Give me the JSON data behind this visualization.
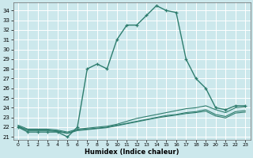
{
  "xlabel": "Humidex (Indice chaleur)",
  "background_color": "#cce8ec",
  "grid_color": "#ffffff",
  "line_color": "#2e7d6e",
  "xlim": [
    -0.5,
    23.5
  ],
  "ylim": [
    20.7,
    34.8
  ],
  "xticks": [
    0,
    1,
    2,
    3,
    4,
    5,
    6,
    7,
    8,
    9,
    10,
    11,
    12,
    13,
    14,
    15,
    16,
    17,
    18,
    19,
    20,
    21,
    22,
    23
  ],
  "yticks": [
    21,
    22,
    23,
    24,
    25,
    26,
    27,
    28,
    29,
    30,
    31,
    32,
    33,
    34
  ],
  "lines": [
    {
      "x": [
        0,
        1,
        2,
        3,
        4,
        5,
        6,
        7,
        8,
        9,
        10,
        11,
        12,
        13,
        14,
        15,
        16,
        17,
        18,
        19,
        20,
        21,
        22,
        23
      ],
      "y": [
        22.0,
        21.5,
        21.5,
        21.5,
        21.5,
        21.0,
        22.0,
        28.0,
        28.5,
        28.0,
        31.0,
        32.5,
        32.5,
        33.5,
        34.5,
        34.0,
        33.8,
        29.0,
        27.0,
        26.0,
        24.0,
        23.8,
        24.2,
        24.2
      ],
      "marker": "+",
      "lw": 1.0
    },
    {
      "x": [
        0,
        1,
        2,
        3,
        4,
        5,
        6,
        7,
        8,
        9,
        10,
        11,
        12,
        13,
        14,
        15,
        16,
        17,
        18,
        19,
        20,
        21,
        22,
        23
      ],
      "y": [
        22.2,
        21.8,
        21.8,
        21.8,
        21.7,
        21.5,
        21.8,
        21.9,
        22.0,
        22.1,
        22.3,
        22.6,
        22.9,
        23.1,
        23.3,
        23.5,
        23.7,
        23.9,
        24.0,
        24.2,
        23.8,
        23.5,
        24.0,
        24.1
      ],
      "marker": null,
      "lw": 0.8
    },
    {
      "x": [
        0,
        1,
        2,
        3,
        4,
        5,
        6,
        7,
        8,
        9,
        10,
        11,
        12,
        13,
        14,
        15,
        16,
        17,
        18,
        19,
        20,
        21,
        22,
        23
      ],
      "y": [
        22.1,
        21.7,
        21.7,
        21.7,
        21.6,
        21.4,
        21.7,
        21.8,
        21.9,
        22.0,
        22.2,
        22.4,
        22.6,
        22.8,
        23.0,
        23.2,
        23.3,
        23.5,
        23.6,
        23.8,
        23.3,
        23.1,
        23.6,
        23.7
      ],
      "marker": null,
      "lw": 0.8
    },
    {
      "x": [
        0,
        1,
        2,
        3,
        4,
        5,
        6,
        7,
        8,
        9,
        10,
        11,
        12,
        13,
        14,
        15,
        16,
        17,
        18,
        19,
        20,
        21,
        22,
        23
      ],
      "y": [
        22.05,
        21.65,
        21.65,
        21.65,
        21.55,
        21.35,
        21.65,
        21.75,
        21.85,
        21.95,
        22.15,
        22.35,
        22.55,
        22.75,
        22.95,
        23.1,
        23.25,
        23.4,
        23.5,
        23.65,
        23.15,
        22.95,
        23.45,
        23.55
      ],
      "marker": null,
      "lw": 0.8
    }
  ]
}
